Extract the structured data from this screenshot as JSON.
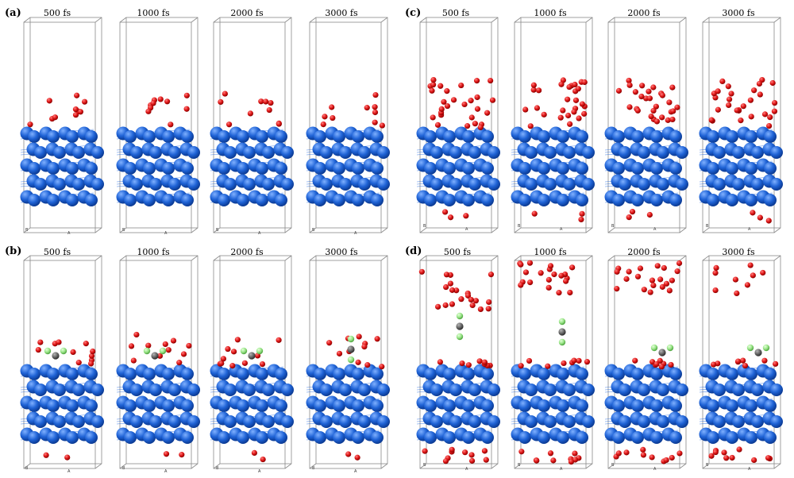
{
  "panels": [
    {
      "label": "(a)",
      "times": [
        "500 fs",
        "1000 fs",
        "2000 fs",
        "3000 fs"
      ]
    },
    {
      "label": "(b)",
      "times": [
        "500 fs",
        "1000 fs",
        "2000 fs",
        "3000 fs"
      ]
    },
    {
      "label": "(c)",
      "times": [
        "500 fs",
        "1000 fs",
        "2000 fs",
        "3000 fs"
      ]
    },
    {
      "label": "(d)",
      "times": [
        "500 fs",
        "1000 fs",
        "2000 fs",
        "3000 fs"
      ]
    }
  ],
  "axis_labels": {
    "b": "B",
    "a": "A"
  },
  "colors": {
    "substrate_atom": "#1f63d6",
    "substrate_highlight": "#7fb0ff",
    "bond": "#2d6fe0",
    "oxygen_atom": "#e01818",
    "carbon_atom": "#6a6a6a",
    "fluorine_atom": "#9be68a",
    "cell_edge": "#8a8a8a"
  }
}
